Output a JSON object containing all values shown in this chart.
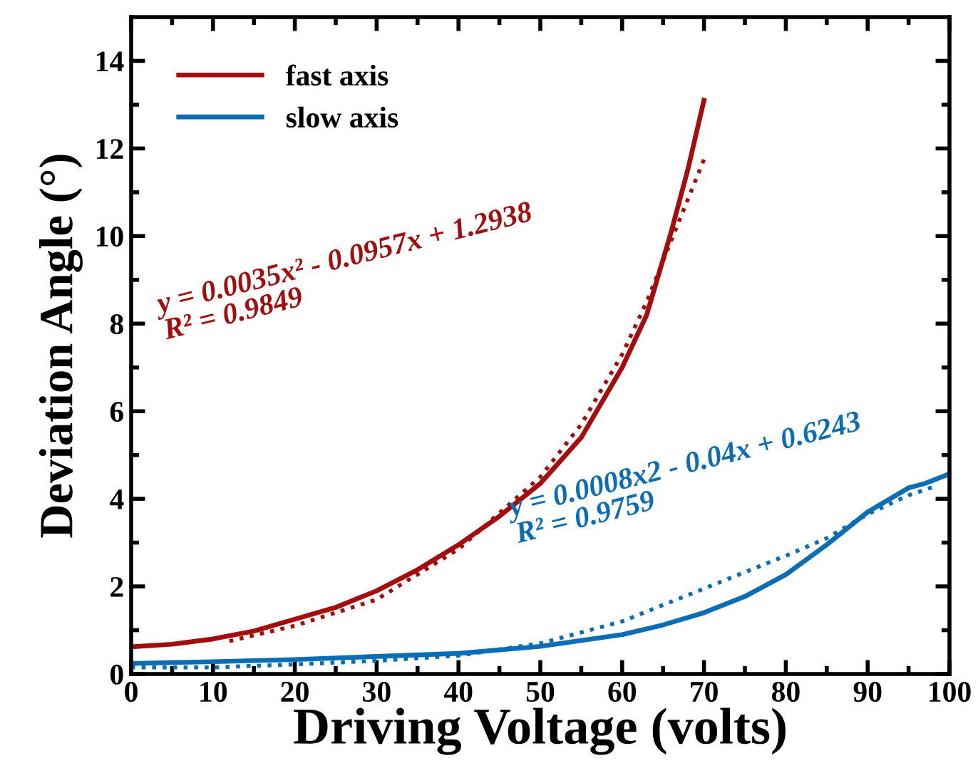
{
  "chart_data": {
    "type": "line",
    "xlabel": "Driving Voltage (volts)",
    "ylabel": "Deviation Angle (°)",
    "xlim": [
      0,
      100
    ],
    "ylim": [
      0,
      15
    ],
    "xticks": [
      0,
      10,
      20,
      30,
      40,
      50,
      60,
      70,
      80,
      90,
      100
    ],
    "yticks": [
      0,
      2,
      4,
      6,
      8,
      10,
      12,
      14
    ],
    "grid": false,
    "legend": "top left",
    "marker": "none",
    "series": [
      {
        "name": "fast axis",
        "color": "#a50d0d",
        "line_style": "solid",
        "x": [
          0,
          5,
          10,
          15,
          20,
          25,
          30,
          35,
          40,
          45,
          50,
          55,
          60,
          63,
          66,
          68,
          70
        ],
        "values": [
          0.62,
          0.68,
          0.8,
          0.98,
          1.25,
          1.52,
          1.9,
          2.38,
          2.95,
          3.6,
          4.35,
          5.4,
          7.0,
          8.2,
          10.1,
          11.5,
          13.1
        ]
      },
      {
        "name": "slow axis",
        "color": "#0a6db5",
        "line_style": "solid",
        "x": [
          0,
          10,
          20,
          30,
          40,
          50,
          60,
          65,
          70,
          75,
          80,
          85,
          90,
          95,
          97,
          100
        ],
        "values": [
          0.24,
          0.28,
          0.33,
          0.4,
          0.47,
          0.63,
          0.9,
          1.12,
          1.4,
          1.77,
          2.27,
          2.95,
          3.7,
          4.25,
          4.35,
          4.57
        ]
      },
      {
        "color": "#a50d0d",
        "line_style": "dotted",
        "x": [
          12,
          20,
          30,
          40,
          50,
          55,
          60,
          63,
          66,
          70
        ],
        "values": [
          0.75,
          1.1,
          1.7,
          2.85,
          4.5,
          5.7,
          7.3,
          8.5,
          9.9,
          11.75
        ]
      },
      {
        "color": "#0a6db5",
        "line_style": "dotted",
        "x": [
          0,
          10,
          20,
          30,
          40,
          50,
          60,
          70,
          80,
          85,
          90,
          95,
          98
        ],
        "values": [
          0.15,
          0.15,
          0.22,
          0.3,
          0.42,
          0.7,
          1.2,
          1.95,
          2.7,
          3.1,
          3.65,
          4.08,
          4.27
        ]
      }
    ],
    "annotations": [
      "y = 0.0035x² - 0.0957x + 1.2938\nR² = 0.9849",
      "y = 0.0008x2 - 0.04x + 0.6243\nR² = 0.9759"
    ]
  }
}
